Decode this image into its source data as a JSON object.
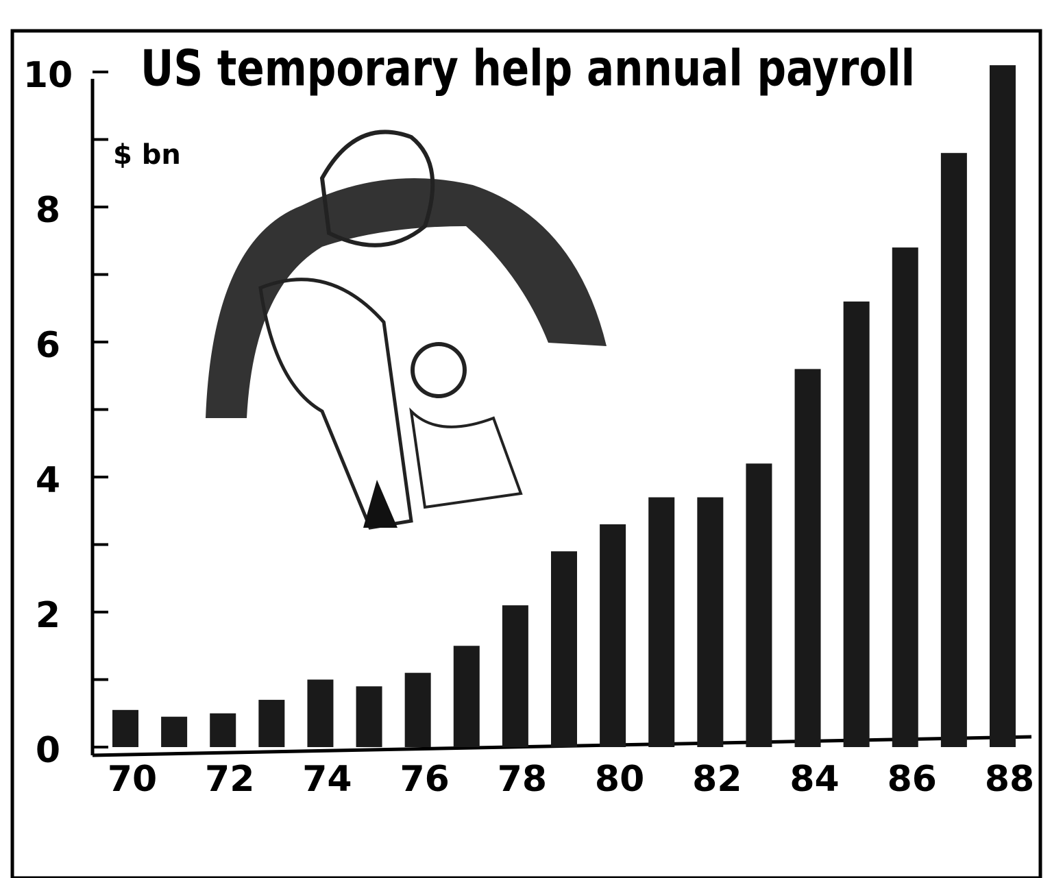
{
  "chart_data": {
    "type": "bar",
    "title": "US temporary help annual payroll",
    "y_label": "$ bn",
    "categories": [
      "70",
      null,
      "72",
      null,
      "74",
      null,
      "76",
      null,
      "78",
      null,
      "80",
      null,
      "82",
      null,
      "84",
      null,
      "86",
      null,
      "88"
    ],
    "values": [
      0.55,
      0.45,
      0.5,
      0.7,
      1.0,
      0.9,
      1.1,
      1.5,
      2.1,
      2.9,
      3.3,
      3.7,
      3.7,
      4.2,
      5.6,
      6.6,
      7.4,
      8.8,
      10.1
    ],
    "color": "#1a1a1a",
    "ylim": [
      0,
      10.5
    ],
    "yticks": [
      0,
      2,
      4,
      6,
      8,
      10
    ],
    "minor_yticks": [
      1,
      3,
      5,
      7,
      9
    ],
    "grid": false
  }
}
